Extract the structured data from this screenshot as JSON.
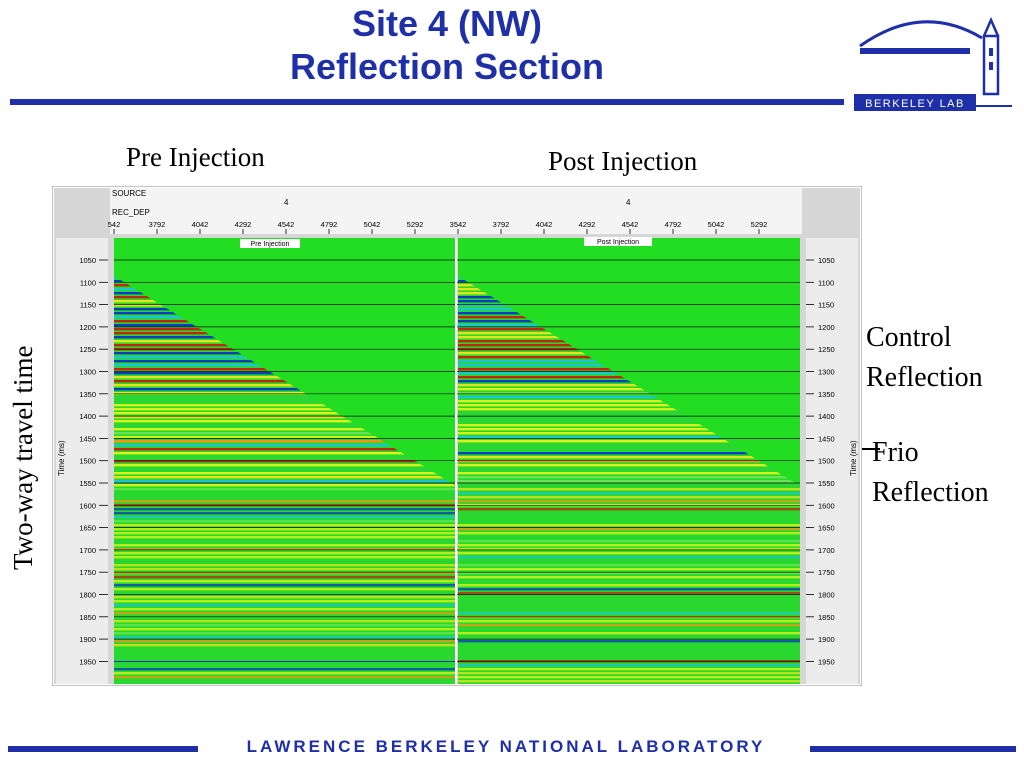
{
  "title": {
    "line1": "Site 4 (NW)",
    "line2": "Reflection Section"
  },
  "logo": {
    "text": "BERKELEY LAB"
  },
  "labels": {
    "pre_injection": "Pre Injection",
    "post_injection": "Post Injection",
    "y_axis": "Two-way travel time"
  },
  "annotations": {
    "control": [
      "Control",
      "Reflection"
    ],
    "frio": [
      "Frio",
      "Reflection"
    ]
  },
  "figure": {
    "header_rows": [
      "SOURCE",
      "REC_DEP"
    ],
    "source_value": "4",
    "rec_dep_ticks": [
      "542",
      "3792",
      "4042",
      "4292",
      "4542",
      "4792",
      "5042",
      "5292",
      "3542",
      "3792",
      "4042",
      "4292",
      "4542",
      "4792",
      "5042",
      "5292"
    ],
    "panel_titles": [
      "Pre Injection",
      "Post Injection"
    ],
    "time_axis_label": "Time (ms)",
    "time_ticks": [
      "1050",
      "1100",
      "1150",
      "1200",
      "1250",
      "1300",
      "1350",
      "1400",
      "1450",
      "1500",
      "1550",
      "1600",
      "1650",
      "1700",
      "1750",
      "1800",
      "1850",
      "1900",
      "1950"
    ]
  },
  "footer": "LAWRENCE BERKELEY NATIONAL LABORATORY",
  "colors": {
    "brand_blue": "#1f2fa8",
    "section_green": "#22dd22"
  }
}
